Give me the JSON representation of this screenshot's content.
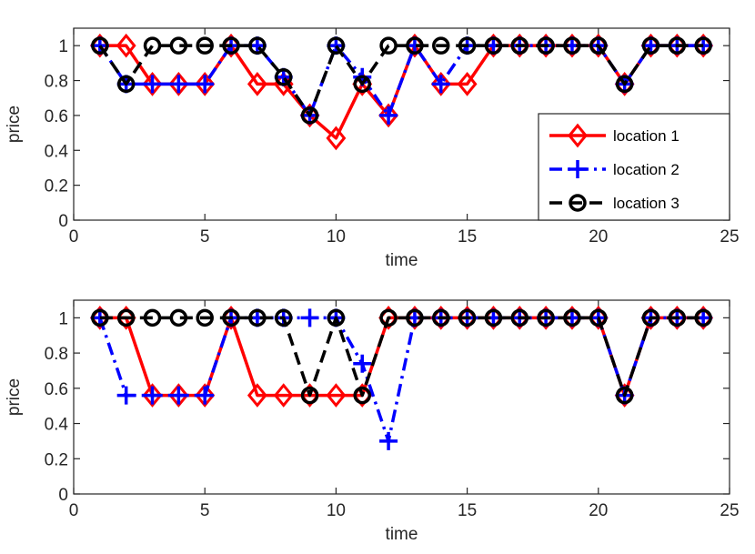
{
  "chart_data": [
    {
      "type": "line",
      "xlabel": "time",
      "ylabel": "price",
      "xlim": [
        0,
        25
      ],
      "ylim": [
        0,
        1.1
      ],
      "xticks": [
        0,
        5,
        10,
        15,
        20,
        25
      ],
      "yticks": [
        0,
        0.2,
        0.4,
        0.6,
        0.8,
        1
      ],
      "x": [
        1,
        2,
        3,
        4,
        5,
        6,
        7,
        8,
        9,
        10,
        11,
        12,
        13,
        14,
        15,
        16,
        17,
        18,
        19,
        20,
        21,
        22,
        23,
        24
      ],
      "legend": {
        "position": "right",
        "show": true
      },
      "series": [
        {
          "name": "location 1",
          "color": "#ff0000",
          "style": "solid",
          "marker": "diamond",
          "values": [
            1,
            1,
            0.78,
            0.78,
            0.78,
            1,
            0.78,
            0.78,
            0.6,
            0.47,
            0.78,
            0.6,
            1,
            0.78,
            0.78,
            1,
            1,
            1,
            1,
            1,
            0.78,
            1,
            1,
            1
          ]
        },
        {
          "name": "location 2",
          "color": "#0000ff",
          "style": "dashdot",
          "marker": "plus",
          "values": [
            1,
            0.78,
            0.78,
            0.78,
            0.78,
            1,
            1,
            0.82,
            0.6,
            1,
            0.82,
            0.6,
            1,
            0.78,
            1,
            1,
            1,
            1,
            1,
            1,
            0.78,
            1,
            1,
            1
          ]
        },
        {
          "name": "location 3",
          "color": "#000000",
          "style": "dashed",
          "marker": "circle",
          "values": [
            1,
            0.78,
            1,
            1,
            1,
            1,
            1,
            0.82,
            0.6,
            1,
            0.78,
            1,
            1,
            1,
            1,
            1,
            1,
            1,
            1,
            1,
            0.78,
            1,
            1,
            1
          ]
        }
      ]
    },
    {
      "type": "line",
      "xlabel": "time",
      "ylabel": "price",
      "xlim": [
        0,
        25
      ],
      "ylim": [
        0,
        1.1
      ],
      "xticks": [
        0,
        5,
        10,
        15,
        20,
        25
      ],
      "yticks": [
        0,
        0.2,
        0.4,
        0.6,
        0.8,
        1
      ],
      "x": [
        1,
        2,
        3,
        4,
        5,
        6,
        7,
        8,
        9,
        10,
        11,
        12,
        13,
        14,
        15,
        16,
        17,
        18,
        19,
        20,
        21,
        22,
        23,
        24
      ],
      "legend": {
        "show": false
      },
      "series": [
        {
          "name": "location 1",
          "color": "#ff0000",
          "style": "solid",
          "marker": "diamond",
          "values": [
            1,
            1,
            0.56,
            0.56,
            0.56,
            1,
            0.56,
            0.56,
            0.56,
            0.56,
            0.56,
            1,
            1,
            1,
            1,
            1,
            1,
            1,
            1,
            1,
            0.56,
            1,
            1,
            1
          ]
        },
        {
          "name": "location 2",
          "color": "#0000ff",
          "style": "dashdot",
          "marker": "plus",
          "values": [
            1,
            0.56,
            0.56,
            0.56,
            0.56,
            1,
            1,
            1,
            1,
            1,
            0.74,
            0.3,
            1,
            1,
            1,
            1,
            1,
            1,
            1,
            1,
            0.56,
            1,
            1,
            1
          ]
        },
        {
          "name": "location 3",
          "color": "#000000",
          "style": "dashed",
          "marker": "circle",
          "values": [
            1,
            1,
            1,
            1,
            1,
            1,
            1,
            1,
            0.56,
            1,
            0.56,
            1,
            1,
            1,
            1,
            1,
            1,
            1,
            1,
            1,
            0.56,
            1,
            1,
            1
          ]
        }
      ]
    }
  ]
}
